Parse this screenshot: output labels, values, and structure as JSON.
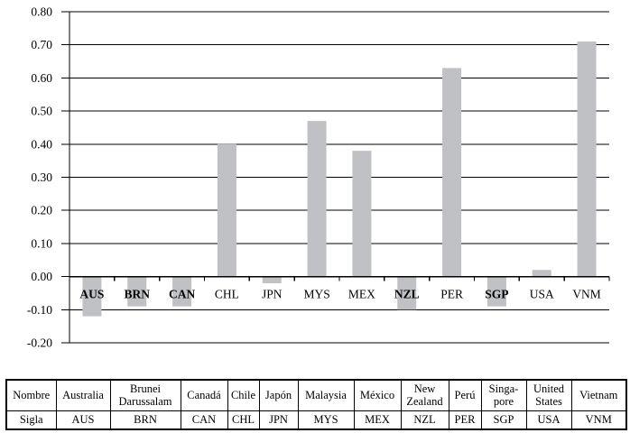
{
  "chart_data": {
    "type": "bar",
    "title": "",
    "xlabel": "",
    "ylabel": "",
    "categories": [
      "AUS",
      "BRN",
      "CAN",
      "CHL",
      "JPN",
      "MYS",
      "MEX",
      "NZL",
      "PER",
      "SGP",
      "USA",
      "VNM"
    ],
    "values": [
      -0.12,
      -0.09,
      -0.09,
      0.4,
      -0.02,
      0.47,
      0.38,
      -0.1,
      0.63,
      -0.09,
      0.02,
      0.71
    ],
    "bold_categories": [
      "AUS",
      "BRN",
      "CAN",
      "NZL",
      "SGP"
    ],
    "ylim": [
      -0.2,
      0.8
    ],
    "ytick_step": 0.1,
    "ytick_labels": [
      "0.80",
      "0.70",
      "0.60",
      "0.50",
      "0.40",
      "0.30",
      "0.20",
      "0.10",
      "0.00",
      "-0.10",
      "-0.20"
    ],
    "grid": true,
    "legend_position": "none",
    "bar_color": "#bfc1c4",
    "axis_color": "#000000"
  },
  "table": {
    "rows": [
      {
        "cells": [
          "Nombre",
          "Australia",
          "Brunei Darussalam",
          "Canadá",
          "Chile",
          "Japón",
          "Malaysia",
          "México",
          "New Zealand",
          "Perú",
          "Singa-pore",
          "United States",
          "Vietnam"
        ]
      },
      {
        "cells": [
          "Sigla",
          "AUS",
          "BRN",
          "CAN",
          "CHL",
          "JPN",
          "MYS",
          "MEX",
          "NZL",
          "PER",
          "SGP",
          "USA",
          "VNM"
        ]
      }
    ]
  }
}
